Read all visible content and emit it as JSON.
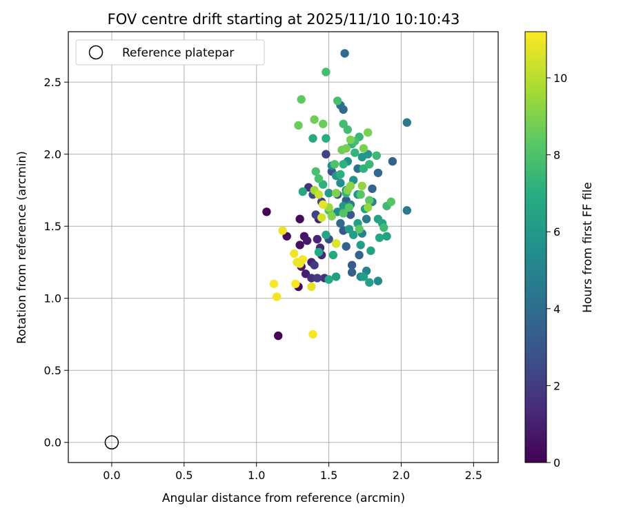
{
  "chart_data": {
    "type": "scatter",
    "title": "FOV centre drift starting at 2025/11/10 10:10:43",
    "xlabel": "Angular distance from reference (arcmin)",
    "ylabel": "Rotation from reference (arcmin)",
    "xlim": [
      -0.3,
      2.67
    ],
    "ylim": [
      -0.14,
      2.85
    ],
    "xticks": [
      "0.0",
      "0.5",
      "1.0",
      "1.5",
      "2.0",
      "2.5"
    ],
    "yticks": [
      "0.0",
      "0.5",
      "1.0",
      "1.5",
      "2.0",
      "2.5"
    ],
    "grid": true,
    "colormap": "viridis",
    "colorbar": {
      "label": "Hours from first FF file",
      "range": [
        0,
        11.2
      ],
      "ticks": [
        "0",
        "2",
        "4",
        "6",
        "8",
        "10"
      ]
    },
    "legend": {
      "placement": "top-left",
      "entries": [
        "Reference platepar"
      ]
    },
    "reference": {
      "x": 0.0,
      "y": 0.0
    },
    "series": [
      {
        "values": [
          [
            1.07,
            1.6,
            0.1
          ],
          [
            1.15,
            0.74,
            0.1
          ],
          [
            1.21,
            1.43,
            0.3
          ],
          [
            1.29,
            1.08,
            0.3
          ],
          [
            1.3,
            1.55,
            0.3
          ],
          [
            1.3,
            1.37,
            0.4
          ],
          [
            1.33,
            1.43,
            0.6
          ],
          [
            1.35,
            1.4,
            0.8
          ],
          [
            1.31,
            1.22,
            0.8
          ],
          [
            1.34,
            1.17,
            1.0
          ],
          [
            1.38,
            1.25,
            1.0
          ],
          [
            1.42,
            1.41,
            1.1
          ],
          [
            1.44,
            1.35,
            1.2
          ],
          [
            1.43,
            1.55,
            1.1
          ],
          [
            1.45,
            1.3,
            1.3
          ],
          [
            1.47,
            1.14,
            1.5
          ],
          [
            1.38,
            1.14,
            1.5
          ],
          [
            1.36,
            1.77,
            1.6
          ],
          [
            1.4,
            1.23,
            1.8
          ],
          [
            1.42,
            1.14,
            2.0
          ],
          [
            1.48,
            2.0,
            2.1
          ],
          [
            1.41,
            1.58,
            2.2
          ],
          [
            1.45,
            1.67,
            2.3
          ],
          [
            1.39,
            1.72,
            2.5
          ],
          [
            1.5,
            1.41,
            2.6
          ],
          [
            1.52,
            1.88,
            2.8
          ],
          [
            1.56,
            1.72,
            2.9
          ],
          [
            1.6,
            1.47,
            3.0
          ],
          [
            1.66,
            1.23,
            3.2
          ],
          [
            1.66,
            1.18,
            3.5
          ],
          [
            1.71,
            1.3,
            3.6
          ],
          [
            1.62,
            1.36,
            3.4
          ],
          [
            1.65,
            1.58,
            3.1
          ],
          [
            1.62,
            1.68,
            3.3
          ],
          [
            1.58,
            1.52,
            3.9
          ],
          [
            1.6,
            2.31,
            3.8
          ],
          [
            1.61,
            2.7,
            4.0
          ],
          [
            1.58,
            2.34,
            4.2
          ],
          [
            1.8,
            1.76,
            3.6
          ],
          [
            1.84,
            1.87,
            3.8
          ],
          [
            1.94,
            1.95,
            3.5
          ],
          [
            2.04,
            2.22,
            4.6
          ],
          [
            2.04,
            1.61,
            4.6
          ],
          [
            1.62,
            1.75,
            4.5
          ],
          [
            1.7,
            1.9,
            4.3
          ],
          [
            1.65,
            1.65,
            4.7
          ],
          [
            1.73,
            1.45,
            4.9
          ],
          [
            1.76,
            1.55,
            4.5
          ],
          [
            1.8,
            1.67,
            4.9
          ],
          [
            1.76,
            1.19,
            5.0
          ],
          [
            1.72,
            1.15,
            5.2
          ],
          [
            1.84,
            1.12,
            5.3
          ],
          [
            1.56,
            1.6,
            5.4
          ],
          [
            1.52,
            1.92,
            5.4
          ],
          [
            1.58,
            1.8,
            5.5
          ],
          [
            1.63,
            1.95,
            5.6
          ],
          [
            1.67,
            1.82,
            5.7
          ],
          [
            1.7,
            1.72,
            5.8
          ],
          [
            1.73,
            1.98,
            5.8
          ],
          [
            1.77,
            2.0,
            5.9
          ],
          [
            1.55,
            1.85,
            5.9
          ],
          [
            1.5,
            1.73,
            6.0
          ],
          [
            1.6,
            1.64,
            6.0
          ],
          [
            1.64,
            1.48,
            6.1
          ],
          [
            1.67,
            1.44,
            6.2
          ],
          [
            1.7,
            1.52,
            6.3
          ],
          [
            1.75,
            1.62,
            6.3
          ],
          [
            1.79,
            1.33,
            6.4
          ],
          [
            1.84,
            1.55,
            6.4
          ],
          [
            1.87,
            1.52,
            6.5
          ],
          [
            1.9,
            1.43,
            6.4
          ],
          [
            1.85,
            1.42,
            6.6
          ],
          [
            1.72,
            1.37,
            6.2
          ],
          [
            1.74,
            1.15,
            6.2
          ],
          [
            1.78,
            1.11,
            6.3
          ],
          [
            1.55,
            1.15,
            6.2
          ],
          [
            1.5,
            1.13,
            6.6
          ],
          [
            1.53,
            1.3,
            6.6
          ],
          [
            1.48,
            1.44,
            6.5
          ],
          [
            1.43,
            1.32,
            6.8
          ],
          [
            1.32,
            1.74,
            6.7
          ],
          [
            1.39,
            2.11,
            6.8
          ],
          [
            1.48,
            2.11,
            6.9
          ],
          [
            1.43,
            1.83,
            7.0
          ],
          [
            1.46,
            1.79,
            7.1
          ],
          [
            1.58,
            1.86,
            7.1
          ],
          [
            1.6,
            1.93,
            7.2
          ],
          [
            1.62,
            1.73,
            7.2
          ],
          [
            1.66,
            2.07,
            7.3
          ],
          [
            1.68,
            2.01,
            7.3
          ],
          [
            1.71,
            2.12,
            7.4
          ],
          [
            1.74,
            1.9,
            7.2
          ],
          [
            1.78,
            1.93,
            7.4
          ],
          [
            1.83,
            1.99,
            7.5
          ],
          [
            1.88,
            1.49,
            7.6
          ],
          [
            1.9,
            1.64,
            7.6
          ],
          [
            1.6,
            2.21,
            7.7
          ],
          [
            1.63,
            2.17,
            7.7
          ],
          [
            1.68,
            2.09,
            7.8
          ],
          [
            1.56,
            2.37,
            7.8
          ],
          [
            1.48,
            2.57,
            7.8
          ],
          [
            1.41,
            1.88,
            7.9
          ],
          [
            1.43,
            1.83,
            7.9
          ],
          [
            1.54,
            1.93,
            8.0
          ],
          [
            1.5,
            1.61,
            8.0
          ],
          [
            1.6,
            1.59,
            8.1
          ],
          [
            1.64,
            1.63,
            8.2
          ],
          [
            1.72,
            1.72,
            8.2
          ],
          [
            1.78,
            1.68,
            8.3
          ],
          [
            1.93,
            1.67,
            8.2
          ],
          [
            1.71,
            1.48,
            8.3
          ],
          [
            1.55,
            1.38,
            8.4
          ],
          [
            1.31,
            2.38,
            8.4
          ],
          [
            1.29,
            2.2,
            8.6
          ],
          [
            1.4,
            2.24,
            8.7
          ],
          [
            1.46,
            2.21,
            8.6
          ],
          [
            1.59,
            2.03,
            8.7
          ],
          [
            1.62,
            2.04,
            8.8
          ],
          [
            1.65,
            2.1,
            8.9
          ],
          [
            1.74,
            2.04,
            8.9
          ],
          [
            1.77,
            2.15,
            8.9
          ],
          [
            1.55,
            1.73,
            9.0
          ],
          [
            1.52,
            1.57,
            9.0
          ],
          [
            1.63,
            1.75,
            9.1
          ],
          [
            1.65,
            1.78,
            9.2
          ],
          [
            1.73,
            1.78,
            9.3
          ],
          [
            1.77,
            1.63,
            9.4
          ],
          [
            1.5,
            1.63,
            9.5
          ],
          [
            1.4,
            1.75,
            9.6
          ],
          [
            1.43,
            1.72,
            10.2
          ],
          [
            1.45,
            1.56,
            10.5
          ],
          [
            1.46,
            1.65,
            10.8
          ],
          [
            1.55,
            1.38,
            10.7
          ],
          [
            1.18,
            1.47,
            10.9
          ],
          [
            1.26,
            1.31,
            11.0
          ],
          [
            1.28,
            1.25,
            11.0
          ],
          [
            1.32,
            1.27,
            11.1
          ],
          [
            1.3,
            1.24,
            10.9
          ],
          [
            1.12,
            1.1,
            11.1
          ],
          [
            1.14,
            1.01,
            11.0
          ],
          [
            1.27,
            1.1,
            11.1
          ],
          [
            1.38,
            1.08,
            10.8
          ],
          [
            1.39,
            0.75,
            11.1
          ]
        ]
      }
    ]
  }
}
